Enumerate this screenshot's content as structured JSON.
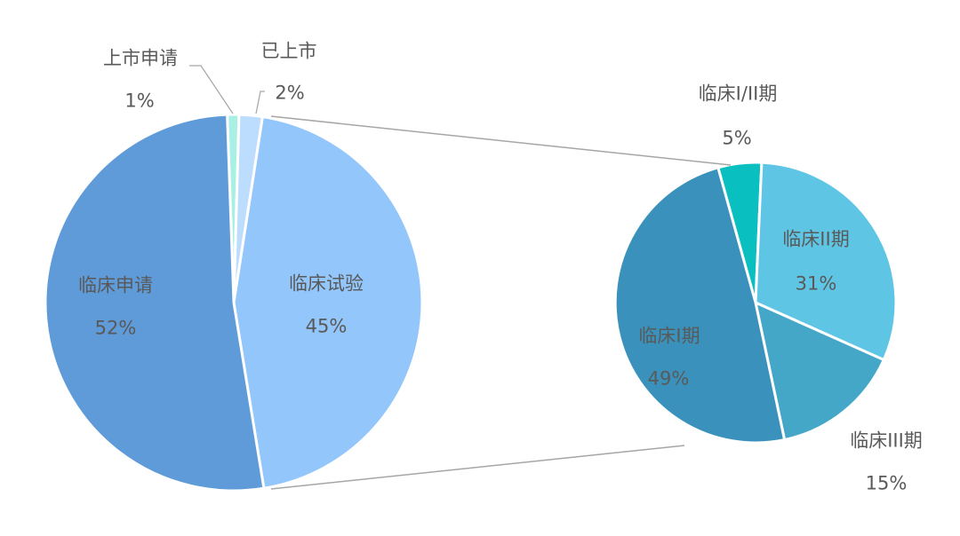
{
  "chart_data": [
    {
      "type": "pie",
      "title": "",
      "center": [
        263,
        341
      ],
      "radius": 212,
      "start_angle_deg": -2,
      "slices": [
        {
          "label": "上市申请",
          "value": 1,
          "pct_label": "1%",
          "color": "#A8F0E4"
        },
        {
          "label": "已上市",
          "value": 2,
          "pct_label": "2%",
          "color": "#BDDDFF"
        },
        {
          "label": "临床试验",
          "value": 45,
          "pct_label": "45%",
          "color": "#93C6FA"
        },
        {
          "label": "临床申请",
          "value": 52,
          "pct_label": "52%",
          "color": "#5F9BD8"
        }
      ]
    },
    {
      "type": "pie",
      "title": "",
      "note": "breakout of 临床试验",
      "center": [
        850,
        341
      ],
      "radius": 158,
      "start_angle_deg": -15.5,
      "slices": [
        {
          "label": "临床I/II期",
          "value": 5,
          "pct_label": "5%",
          "color": "#0ABFBF"
        },
        {
          "label": "临床II期",
          "value": 31,
          "pct_label": "31%",
          "color": "#5EC6E4"
        },
        {
          "label": "临床III期",
          "value": 15,
          "pct_label": "15%",
          "color": "#45A7C8"
        },
        {
          "label": "临床I期",
          "value": 49,
          "pct_label": "49%",
          "color": "#3A92BC"
        }
      ]
    }
  ],
  "labels": {
    "left": [
      {
        "name": "上市申请",
        "pct": "1%"
      },
      {
        "name": "已上市",
        "pct": "2%"
      },
      {
        "name": "临床试验",
        "pct": "45%"
      },
      {
        "name": "临床申请",
        "pct": "52%"
      }
    ],
    "right": [
      {
        "name": "临床I/II期",
        "pct": "5%"
      },
      {
        "name": "临床II期",
        "pct": "31%"
      },
      {
        "name": "临床III期",
        "pct": "15%"
      },
      {
        "name": "临床I期",
        "pct": "49%"
      }
    ]
  },
  "colors": {
    "text": "#595959",
    "connector": "#A6A6A6",
    "separator": "#FFFFFF"
  }
}
